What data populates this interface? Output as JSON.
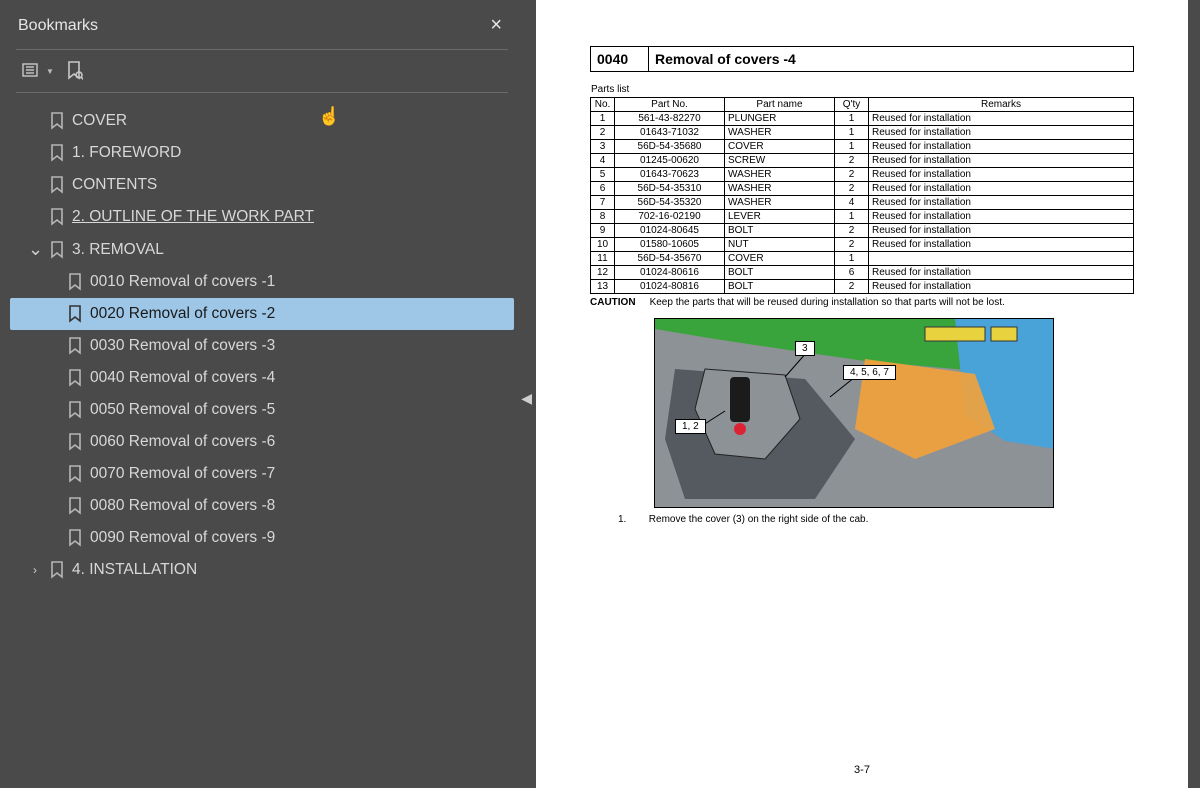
{
  "sidebar": {
    "title": "Bookmarks",
    "items": [
      {
        "label": "COVER",
        "level": 1,
        "chevron": ""
      },
      {
        "label": "1. FOREWORD",
        "level": 1,
        "chevron": ""
      },
      {
        "label": "CONTENTS",
        "level": 1,
        "chevron": ""
      },
      {
        "label": "2. OUTLINE OF THE WORK PART",
        "level": 1,
        "chevron": "",
        "underline": true
      },
      {
        "label": "3. REMOVAL",
        "level": 1,
        "chevron": "⌄"
      },
      {
        "label": "0010 Removal of covers -1",
        "level": 2,
        "chevron": ""
      },
      {
        "label": "0020 Removal of covers -2",
        "level": 2,
        "chevron": "",
        "selected": true
      },
      {
        "label": "0030 Removal of covers -3",
        "level": 2,
        "chevron": ""
      },
      {
        "label": "0040 Removal of covers -4",
        "level": 2,
        "chevron": ""
      },
      {
        "label": "0050 Removal of covers -5",
        "level": 2,
        "chevron": ""
      },
      {
        "label": "0060 Removal of covers -6",
        "level": 2,
        "chevron": ""
      },
      {
        "label": "0070 Removal of covers -7",
        "level": 2,
        "chevron": ""
      },
      {
        "label": "0080 Removal of covers -8",
        "level": 2,
        "chevron": ""
      },
      {
        "label": "0090 Removal of covers -9",
        "level": 2,
        "chevron": ""
      },
      {
        "label": "4. INSTALLATION",
        "level": 1,
        "chevron": "›"
      }
    ]
  },
  "page": {
    "section_code": "0040",
    "section_title": "Removal of covers -4",
    "parts_label": "Parts list",
    "columns": [
      "No.",
      "Part No.",
      "Part name",
      "Q'ty",
      "Remarks"
    ],
    "rows": [
      [
        "1",
        "561-43-82270",
        "PLUNGER",
        "1",
        "Reused for installation"
      ],
      [
        "2",
        "01643-71032",
        "WASHER",
        "1",
        "Reused for installation"
      ],
      [
        "3",
        "56D-54-35680",
        "COVER",
        "1",
        "Reused for installation"
      ],
      [
        "4",
        "01245-00620",
        "SCREW",
        "2",
        "Reused for installation"
      ],
      [
        "5",
        "01643-70623",
        "WASHER",
        "2",
        "Reused for installation"
      ],
      [
        "6",
        "56D-54-35310",
        "WASHER",
        "2",
        "Reused for installation"
      ],
      [
        "7",
        "56D-54-35320",
        "WASHER",
        "4",
        "Reused for installation"
      ],
      [
        "8",
        "702-16-02190",
        "LEVER",
        "1",
        "Reused for installation"
      ],
      [
        "9",
        "01024-80645",
        "BOLT",
        "2",
        "Reused for installation"
      ],
      [
        "10",
        "01580-10605",
        "NUT",
        "2",
        "Reused for installation"
      ],
      [
        "11",
        "56D-54-35670",
        "COVER",
        "1",
        ""
      ],
      [
        "12",
        "01024-80616",
        "BOLT",
        "6",
        "Reused for installation"
      ],
      [
        "13",
        "01024-80816",
        "BOLT",
        "2",
        "Reused for installation"
      ]
    ],
    "caution_label": "CAUTION",
    "caution_text": "Keep the parts that will be reused during installation so that parts will not be lost.",
    "callouts": [
      "1, 2",
      "3",
      "4, 5, 6, 7"
    ],
    "instruction_index": "1.",
    "instruction_text": "Remove the cover (3) on the right side of the cab.",
    "page_number": "3-7",
    "diagram_colors": {
      "floor": "#8d9297",
      "panel1": "#4aa3d8",
      "panel2": "#f2a23a",
      "panel3": "#3aa43c",
      "panel4": "#e8d33f",
      "dark": "#555a60"
    }
  }
}
